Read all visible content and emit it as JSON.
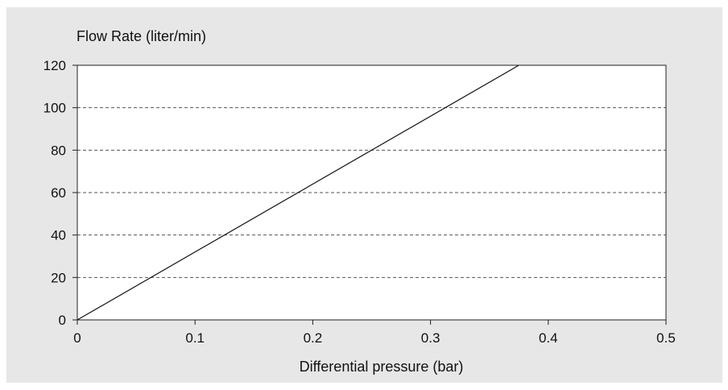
{
  "chart_data": {
    "type": "line",
    "ylabel": "Flow Rate (liter/min)",
    "xlabel": "Differential pressure (bar)",
    "xlim": [
      0,
      0.5
    ],
    "ylim": [
      0,
      120
    ],
    "x_ticks": [
      0,
      0.1,
      0.2,
      0.3,
      0.4,
      0.5
    ],
    "y_ticks": [
      0,
      20,
      40,
      60,
      80,
      100,
      120
    ],
    "grid": "horizontal-dashed",
    "legend": "none",
    "colors": {
      "panel": "#e7e7e8",
      "plot": "#ffffff",
      "line": "#111111",
      "grid": "#555555"
    },
    "series": [
      {
        "x": [
          0,
          0.375
        ],
        "y": [
          0,
          120
        ]
      }
    ]
  }
}
